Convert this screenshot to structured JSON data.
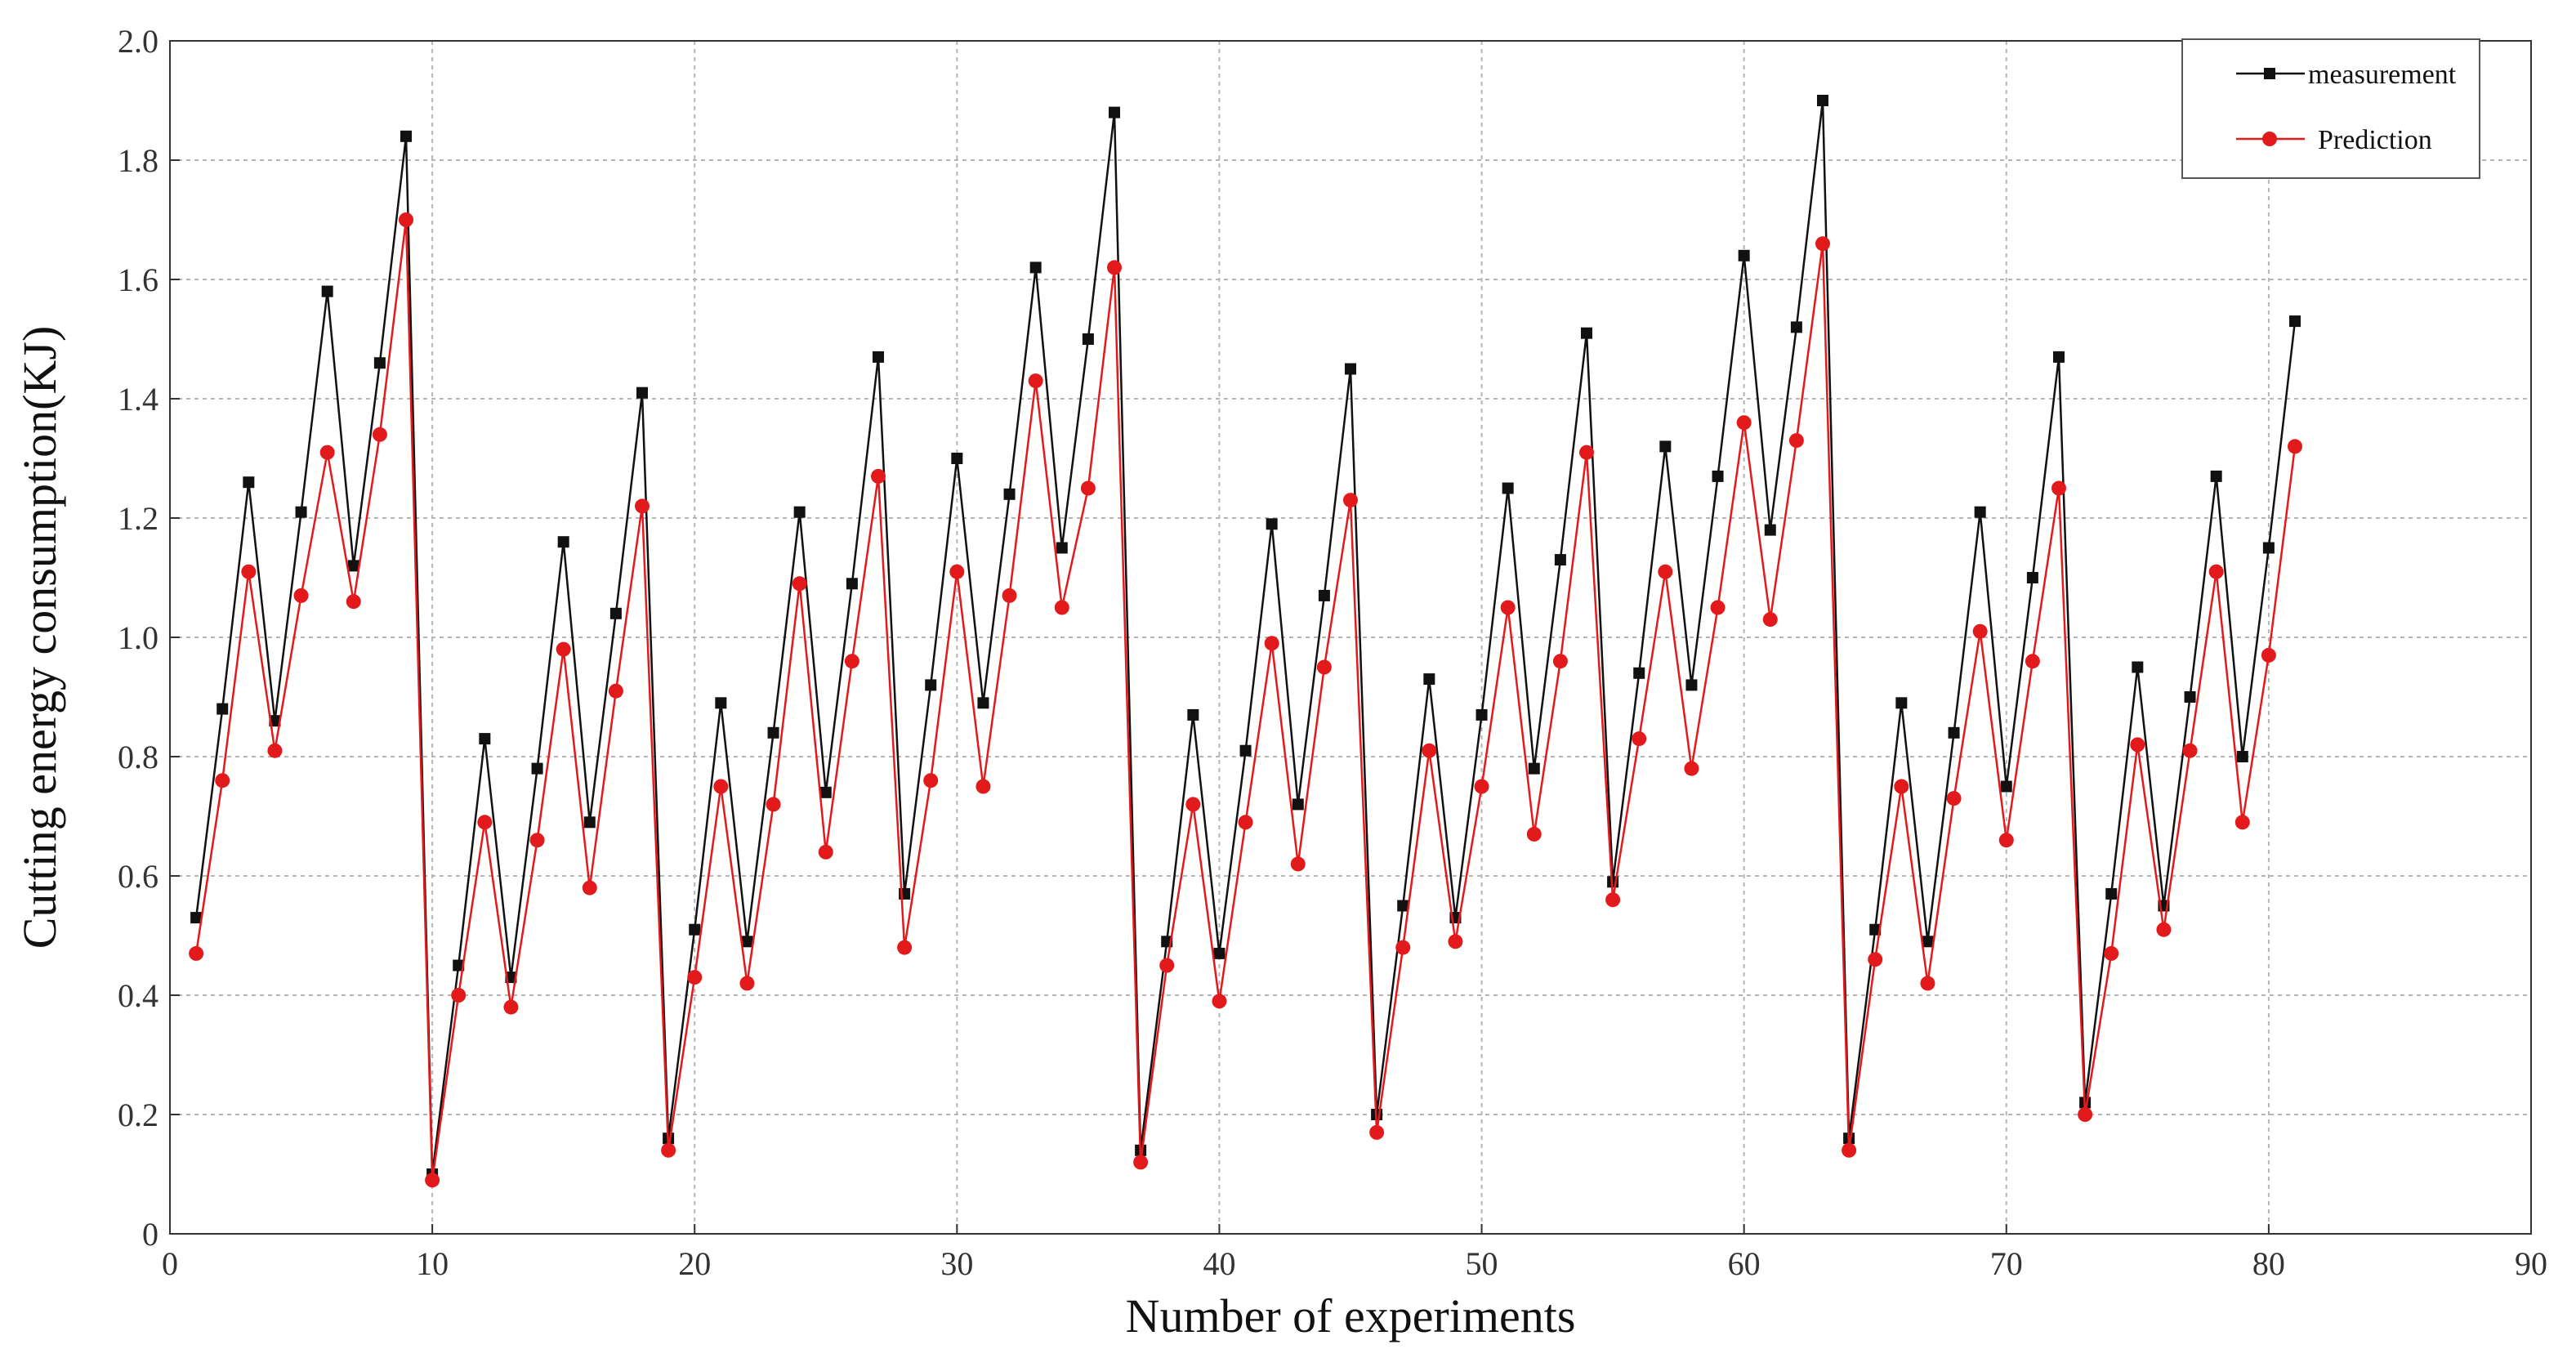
{
  "chart_data": {
    "type": "line",
    "title": "",
    "xlabel": "Number of experiments",
    "ylabel": "Cutting energy consumption(KJ)",
    "xlim": [
      0,
      90
    ],
    "ylim": [
      0,
      2.0
    ],
    "xticks": [
      0,
      10,
      20,
      30,
      40,
      50,
      60,
      70,
      80,
      90
    ],
    "xtick_labels": [
      "0",
      "10",
      "20",
      "30",
      "40",
      "50",
      "60",
      "70",
      "80",
      "90"
    ],
    "yticks": [
      0,
      0.2,
      0.4,
      0.6,
      0.8,
      1.0,
      1.2,
      1.4,
      1.6,
      1.8,
      2.0
    ],
    "ytick_labels": [
      "0",
      "0.2",
      "0.4",
      "0.6",
      "0.8",
      "1.0",
      "1.2",
      "1.4",
      "1.6",
      "1.8",
      "2.0"
    ],
    "grid": true,
    "legend_position": "top-right",
    "x": [
      1,
      2,
      3,
      4,
      5,
      6,
      7,
      8,
      9,
      10,
      11,
      12,
      13,
      14,
      15,
      16,
      17,
      18,
      19,
      20,
      21,
      22,
      23,
      24,
      25,
      26,
      27,
      28,
      29,
      30,
      31,
      32,
      33,
      34,
      35,
      36,
      37,
      38,
      39,
      40,
      41,
      42,
      43,
      44,
      45,
      46,
      47,
      48,
      49,
      50,
      51,
      52,
      53,
      54,
      55,
      56,
      57,
      58,
      59,
      60,
      61,
      62,
      63,
      64,
      65,
      66,
      67,
      68,
      69,
      70,
      71,
      72,
      73,
      74,
      75,
      76,
      77,
      78,
      79,
      80,
      81
    ],
    "series": [
      {
        "name": "measurement",
        "color": "#111111",
        "marker": "square",
        "values": [
          0.53,
          0.88,
          1.26,
          0.86,
          1.21,
          1.58,
          1.12,
          1.46,
          1.84,
          0.1,
          0.45,
          0.83,
          0.43,
          0.78,
          1.16,
          0.69,
          1.04,
          1.41,
          0.16,
          0.51,
          0.89,
          0.49,
          0.84,
          1.21,
          0.74,
          1.09,
          1.47,
          0.57,
          0.92,
          1.3,
          0.89,
          1.24,
          1.62,
          1.15,
          1.5,
          1.88,
          0.14,
          0.49,
          0.87,
          0.47,
          0.81,
          1.19,
          0.72,
          1.07,
          1.45,
          0.2,
          0.55,
          0.93,
          0.53,
          0.87,
          1.25,
          0.78,
          1.13,
          1.51,
          0.59,
          0.94,
          1.32,
          0.92,
          1.27,
          1.64,
          1.18,
          1.52,
          1.9,
          0.16,
          0.51,
          0.89,
          0.49,
          0.84,
          1.21,
          0.75,
          1.1,
          1.47,
          0.22,
          0.57,
          0.95,
          0.55,
          0.9,
          1.27,
          0.8,
          1.15,
          1.53
        ]
      },
      {
        "name": "Prediction",
        "color": "#e31a1c",
        "marker": "circle",
        "values": [
          0.47,
          0.76,
          1.11,
          0.81,
          1.07,
          1.31,
          1.06,
          1.34,
          1.7,
          0.09,
          0.4,
          0.69,
          0.38,
          0.66,
          0.98,
          0.58,
          0.91,
          1.22,
          0.14,
          0.43,
          0.75,
          0.42,
          0.72,
          1.09,
          0.64,
          0.96,
          1.27,
          0.48,
          0.76,
          1.11,
          0.75,
          1.07,
          1.43,
          1.05,
          1.25,
          1.62,
          0.12,
          0.45,
          0.72,
          0.39,
          0.69,
          0.99,
          0.62,
          0.95,
          1.23,
          0.17,
          0.48,
          0.81,
          0.49,
          0.75,
          1.05,
          0.67,
          0.96,
          1.31,
          0.56,
          0.83,
          1.11,
          0.78,
          1.05,
          1.36,
          1.03,
          1.33,
          1.66,
          0.14,
          0.46,
          0.75,
          0.42,
          0.73,
          1.01,
          0.66,
          0.96,
          1.25,
          0.2,
          0.47,
          0.82,
          0.51,
          0.81,
          1.11,
          0.69,
          0.97,
          1.32
        ]
      }
    ]
  }
}
